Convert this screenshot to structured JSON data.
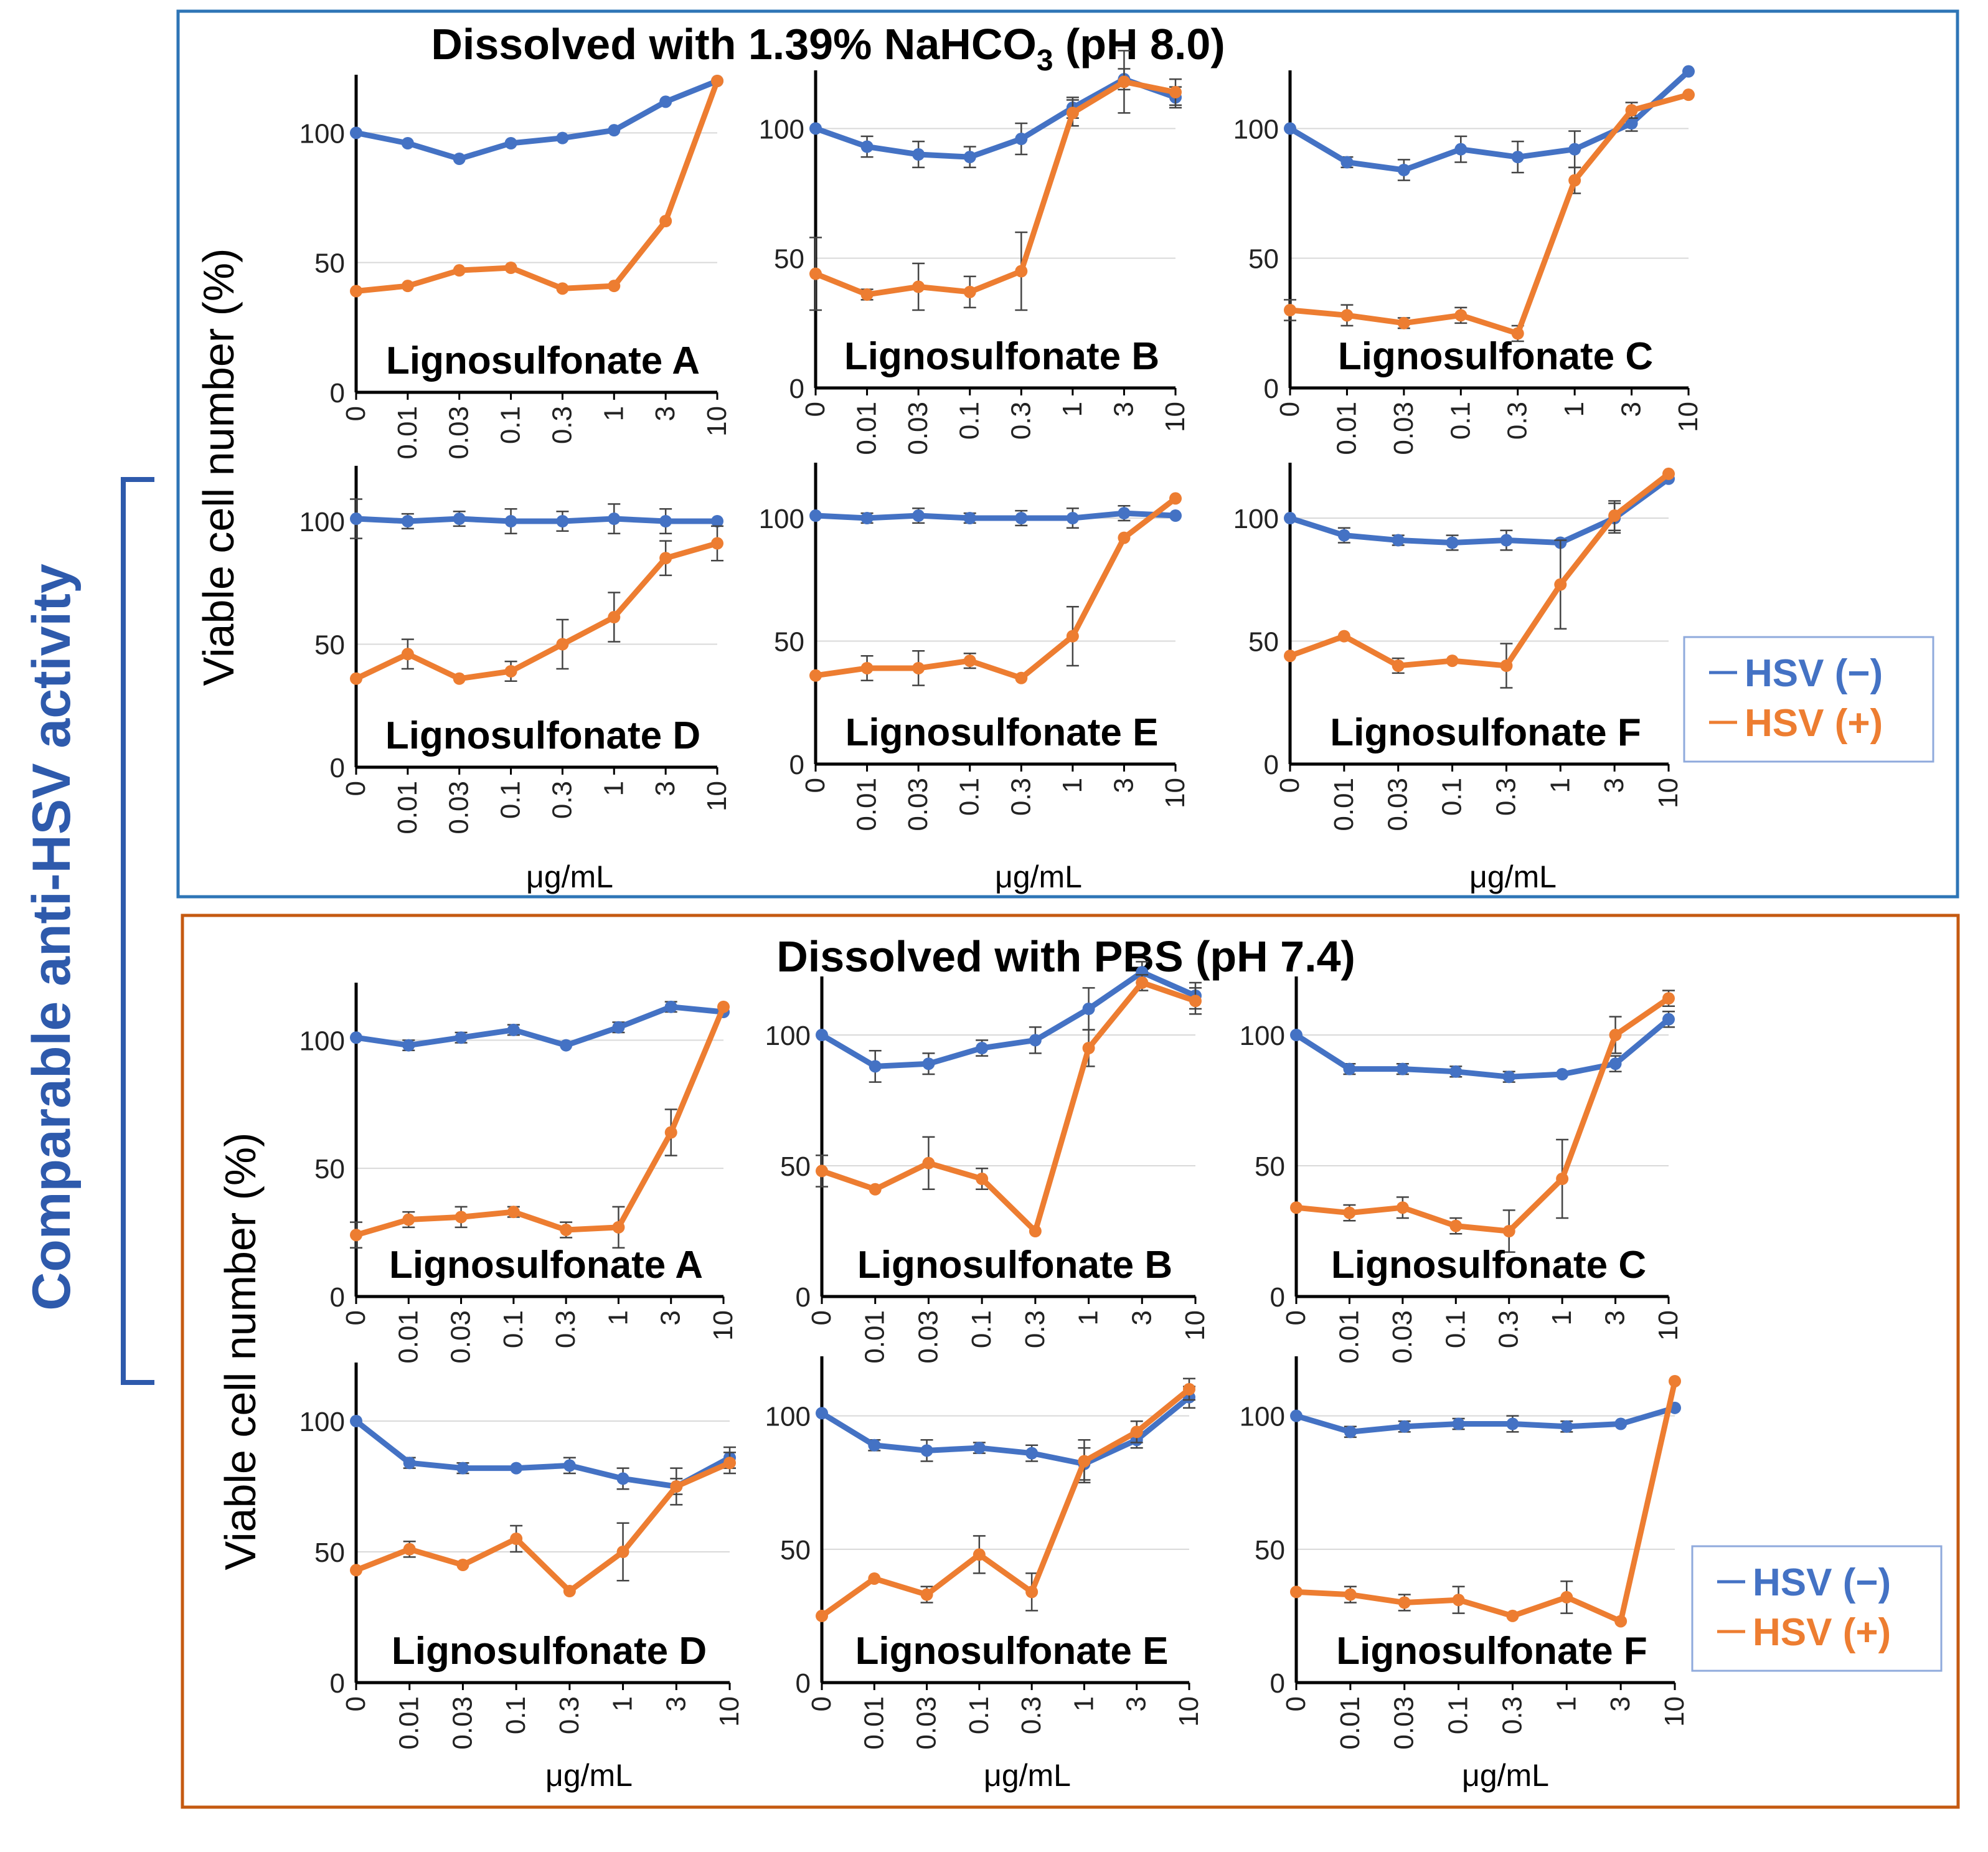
{
  "figure": {
    "side_label": "Comparable anti-HSV activity",
    "xunit": "μg/mL",
    "colors": {
      "hsv_minus": "#4472C4",
      "hsv_plus": "#ED7D31",
      "top_frame": "#2E75B6",
      "bottom_frame": "#C55A11",
      "bracket": "#2E5AAC"
    }
  },
  "chart_data": [
    {
      "section": "top",
      "title_parts": [
        "Dissolved with 1.39%  NaHCO",
        "3",
        " (pH 8.0)"
      ],
      "ylabel": "Viable cell number  (%)",
      "legend": [
        "HSV (−)",
        "HSV (+)"
      ],
      "panels": [
        {
          "type": "line",
          "label": "Lignosulfonate  A",
          "yticks": [
            "0",
            "50",
            "100"
          ],
          "categories": [
            "0",
            "0.01",
            "0.03",
            "0.1",
            "0.3",
            "1",
            "3",
            "10"
          ],
          "series": [
            {
              "name": "HSV (−)",
              "values": [
                100,
                96,
                90,
                96,
                98,
                101,
                112,
                120
              ],
              "err": [
                0,
                0,
                0,
                0,
                0,
                0,
                0,
                0
              ]
            },
            {
              "name": "HSV (+)",
              "values": [
                39,
                41,
                47,
                48,
                40,
                41,
                66,
                120
              ],
              "err": [
                0,
                0,
                0,
                0,
                0,
                0,
                0,
                0
              ]
            }
          ]
        },
        {
          "type": "line",
          "label": "Lignosulfonate  B",
          "yticks": [
            "0",
            "50",
            "100"
          ],
          "categories": [
            "0",
            "0.01",
            "0.03",
            "0.1",
            "0.3",
            "1",
            "3",
            "10"
          ],
          "series": [
            {
              "name": "HSV (−)",
              "values": [
                100,
                93,
                90,
                89,
                96,
                108,
                119,
                112
              ],
              "err": [
                0,
                4,
                5,
                4,
                6,
                4,
                4,
                4
              ]
            },
            {
              "name": "HSV (+)",
              "values": [
                44,
                36,
                39,
                37,
                45,
                106,
                118,
                114
              ],
              "err": [
                14,
                2,
                9,
                6,
                15,
                5,
                12,
                5
              ]
            }
          ]
        },
        {
          "type": "line",
          "label": "Lignosulfonate  C",
          "yticks": [
            "0",
            "50",
            "100"
          ],
          "categories": [
            "0",
            "0.01",
            "0.03",
            "0.1",
            "0.3",
            "1",
            "3",
            "10"
          ],
          "series": [
            {
              "name": "HSV (−)",
              "values": [
                100,
                87,
                84,
                92,
                89,
                92,
                102,
                122
              ],
              "err": [
                0,
                2,
                4,
                5,
                6,
                7,
                3,
                0
              ]
            },
            {
              "name": "HSV (+)",
              "values": [
                30,
                28,
                25,
                28,
                21,
                80,
                107,
                113
              ],
              "err": [
                4,
                4,
                2,
                3,
                3,
                5,
                3,
                0
              ]
            }
          ]
        },
        {
          "type": "line",
          "label": "Lignosulfonate  D",
          "yticks": [
            "0",
            "50",
            "100"
          ],
          "categories": [
            "0",
            "0.01",
            "0.03",
            "0.1",
            "0.3",
            "1",
            "3",
            "10"
          ],
          "series": [
            {
              "name": "HSV (−)",
              "values": [
                101,
                100,
                101,
                100,
                100,
                101,
                100,
                100
              ],
              "err": [
                8,
                3,
                3,
                5,
                4,
                6,
                5,
                0
              ]
            },
            {
              "name": "HSV (+)",
              "values": [
                36,
                46,
                36,
                39,
                50,
                61,
                85,
                91
              ],
              "err": [
                0,
                6,
                0,
                4,
                10,
                10,
                7,
                7
              ]
            }
          ]
        },
        {
          "type": "line",
          "label": "Lignosulfonate  E",
          "yticks": [
            "0",
            "50",
            "100"
          ],
          "categories": [
            "0",
            "0.01",
            "0.03",
            "0.1",
            "0.3",
            "1",
            "3",
            "10"
          ],
          "series": [
            {
              "name": "HSV (−)",
              "values": [
                101,
                100,
                101,
                100,
                100,
                100,
                102,
                101
              ],
              "err": [
                0,
                2,
                3,
                2,
                3,
                4,
                3,
                0
              ]
            },
            {
              "name": "HSV (+)",
              "values": [
                36,
                39,
                39,
                42,
                35,
                52,
                92,
                108
              ],
              "err": [
                0,
                5,
                7,
                3,
                0,
                12,
                0,
                0
              ]
            }
          ]
        },
        {
          "type": "line",
          "label": "Lignosulfonate  F",
          "yticks": [
            "0",
            "50",
            "100"
          ],
          "categories": [
            "0",
            "0.01",
            "0.03",
            "0.1",
            "0.3",
            "1",
            "3",
            "10"
          ],
          "series": [
            {
              "name": "HSV (−)",
              "values": [
                100,
                93,
                91,
                90,
                91,
                90,
                100,
                116
              ],
              "err": [
                0,
                3,
                2,
                3,
                4,
                0,
                6,
                0
              ]
            },
            {
              "name": "HSV (+)",
              "values": [
                44,
                52,
                40,
                42,
                40,
                73,
                101,
                118
              ],
              "err": [
                0,
                0,
                3,
                0,
                9,
                18,
                6,
                0
              ]
            }
          ]
        }
      ]
    },
    {
      "section": "bottom",
      "title_parts": [
        "Dissolved with PBS  (pH 7.4)"
      ],
      "ylabel": "Viable cell number  (%)",
      "legend": [
        "HSV (−)",
        "HSV (+)"
      ],
      "panels": [
        {
          "type": "line",
          "label": "Lignosulfonate  A",
          "yticks": [
            "0",
            "50",
            "100"
          ],
          "categories": [
            "0",
            "0.01",
            "0.03",
            "0.1",
            "0.3",
            "1",
            "3",
            "10"
          ],
          "series": [
            {
              "name": "HSV (−)",
              "values": [
                101,
                98,
                101,
                104,
                98,
                105,
                113,
                111
              ],
              "err": [
                0,
                2,
                2,
                2,
                0,
                2,
                2,
                0
              ]
            },
            {
              "name": "HSV (+)",
              "values": [
                24,
                30,
                31,
                33,
                26,
                27,
                64,
                113
              ],
              "err": [
                5,
                3,
                4,
                2,
                3,
                8,
                9,
                0
              ]
            }
          ]
        },
        {
          "type": "line",
          "label": "Lignosulfonate  B",
          "yticks": [
            "0",
            "50",
            "100"
          ],
          "categories": [
            "0",
            "0.01",
            "0.03",
            "0.1",
            "0.3",
            "1",
            "3",
            "10"
          ],
          "series": [
            {
              "name": "HSV (−)",
              "values": [
                100,
                88,
                89,
                95,
                98,
                110,
                124,
                115
              ],
              "err": [
                0,
                6,
                4,
                3,
                5,
                8,
                4,
                5
              ]
            },
            {
              "name": "HSV (+)",
              "values": [
                48,
                41,
                51,
                45,
                25,
                95,
                120,
                113
              ],
              "err": [
                6,
                0,
                10,
                4,
                0,
                7,
                3,
                5
              ]
            }
          ]
        },
        {
          "type": "line",
          "label": "Lignosulfonate  C",
          "yticks": [
            "0",
            "50",
            "100"
          ],
          "categories": [
            "0",
            "0.01",
            "0.03",
            "0.1",
            "0.3",
            "1",
            "3",
            "10"
          ],
          "series": [
            {
              "name": "HSV (−)",
              "values": [
                100,
                87,
                87,
                86,
                84,
                85,
                89,
                106
              ],
              "err": [
                0,
                2,
                2,
                2,
                2,
                0,
                3,
                3
              ]
            },
            {
              "name": "HSV (+)",
              "values": [
                34,
                32,
                34,
                27,
                25,
                45,
                100,
                114
              ],
              "err": [
                0,
                3,
                4,
                3,
                8,
                15,
                7,
                3
              ]
            }
          ]
        },
        {
          "type": "line",
          "label": "Lignosulfonate  D",
          "yticks": [
            "0",
            "50",
            "100"
          ],
          "categories": [
            "0",
            "0.01",
            "0.03",
            "0.1",
            "0.3",
            "1",
            "3",
            "10"
          ],
          "series": [
            {
              "name": "HSV (−)",
              "values": [
                100,
                84,
                82,
                82,
                83,
                78,
                75,
                86
              ],
              "err": [
                0,
                2,
                2,
                0,
                3,
                4,
                3,
                4
              ]
            },
            {
              "name": "HSV (+)",
              "values": [
                43,
                51,
                45,
                55,
                35,
                50,
                75,
                84
              ],
              "err": [
                0,
                3,
                0,
                5,
                0,
                11,
                7,
                4
              ]
            }
          ]
        },
        {
          "type": "line",
          "label": "Lignosulfonate  E",
          "yticks": [
            "0",
            "50",
            "100"
          ],
          "categories": [
            "0",
            "0.01",
            "0.03",
            "0.1",
            "0.3",
            "1",
            "3",
            "10"
          ],
          "series": [
            {
              "name": "HSV (−)",
              "values": [
                101,
                89,
                87,
                88,
                86,
                82,
                91,
                107
              ],
              "err": [
                0,
                2,
                4,
                2,
                3,
                6,
                3,
                4
              ]
            },
            {
              "name": "HSV (+)",
              "values": [
                25,
                39,
                33,
                48,
                34,
                83,
                94,
                110
              ],
              "err": [
                0,
                0,
                3,
                7,
                7,
                8,
                4,
                4
              ]
            }
          ]
        },
        {
          "type": "line",
          "label": "Lignosulfonate  F",
          "yticks": [
            "0",
            "50",
            "100"
          ],
          "categories": [
            "0",
            "0.01",
            "0.03",
            "0.1",
            "0.3",
            "1",
            "3",
            "10"
          ],
          "series": [
            {
              "name": "HSV (−)",
              "values": [
                100,
                94,
                96,
                97,
                97,
                96,
                97,
                103
              ],
              "err": [
                0,
                2,
                2,
                2,
                3,
                2,
                0,
                0
              ]
            },
            {
              "name": "HSV (+)",
              "values": [
                34,
                33,
                30,
                31,
                25,
                32,
                23,
                113
              ],
              "err": [
                0,
                3,
                3,
                5,
                0,
                6,
                0,
                0
              ]
            }
          ]
        }
      ]
    }
  ]
}
